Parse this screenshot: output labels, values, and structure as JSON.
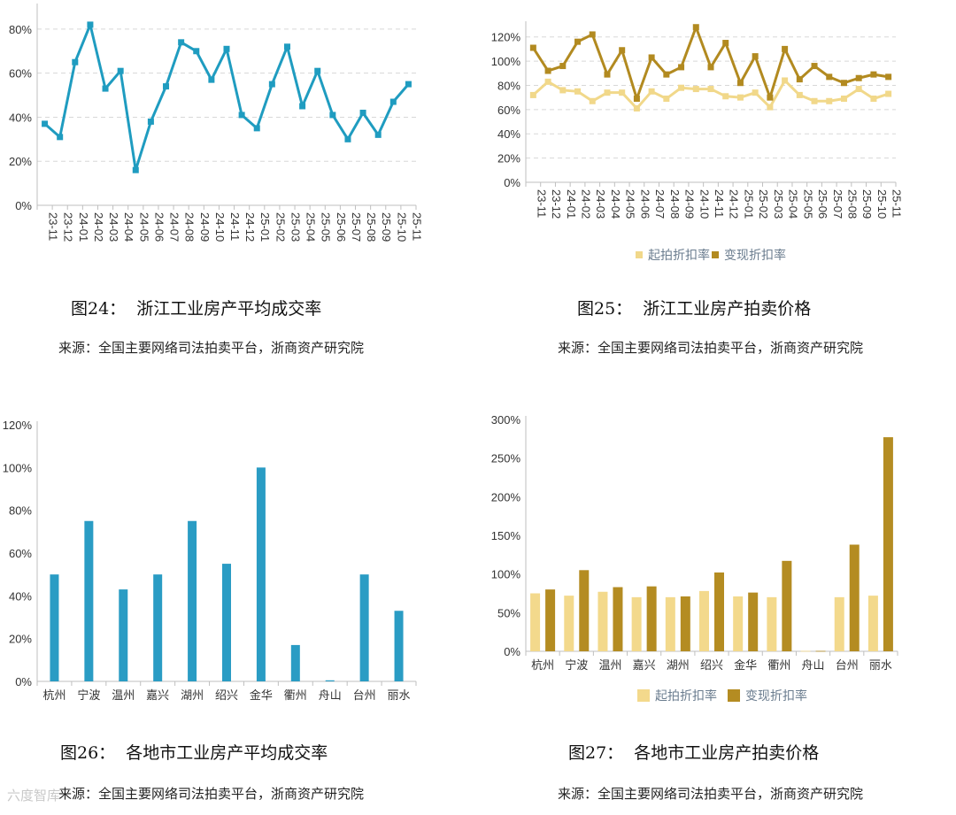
{
  "figures": [
    {
      "title": "图24：  浙江工业房产平均成交率",
      "source": "来源：全国主要网络司法拍卖平台，浙商资产研究院"
    },
    {
      "title": "图25：  浙江工业房产拍卖价格",
      "source": "来源：全国主要网络司法拍卖平台，浙商资产研究院"
    },
    {
      "title": "图26：  各地市工业房产平均成交率",
      "source": "来源：全国主要网络司法拍卖平台，浙商资产研究院"
    },
    {
      "title": "图27：  各地市工业房产拍卖价格",
      "source": "来源：全国主要网络司法拍卖平台，浙商资产研究院"
    }
  ],
  "watermark": "六度智库",
  "chart_data": [
    {
      "type": "line",
      "x": [
        "23-11",
        "23-12",
        "24-01",
        "24-02",
        "24-03",
        "24-04",
        "24-05",
        "24-06",
        "24-07",
        "24-08",
        "24-09",
        "24-10",
        "24-11",
        "24-12",
        "25-01",
        "25-02",
        "25-03",
        "25-04",
        "25-05",
        "25-06",
        "25-07",
        "25-08",
        "25-09",
        "25-10",
        "25-11"
      ],
      "series": [
        {
          "values": [
            37,
            31,
            65,
            82,
            53,
            61,
            16,
            38,
            54,
            74,
            70,
            57,
            71,
            41,
            35,
            55,
            72,
            45,
            61,
            41,
            30,
            42,
            32,
            47,
            55
          ],
          "color": "#1f9cc0"
        }
      ],
      "yticks": [
        "0%",
        "20%",
        "40%",
        "60%",
        "80%"
      ],
      "ylim": [
        0,
        90
      ],
      "grid": true
    },
    {
      "type": "line",
      "x": [
        "23-11",
        "23-12",
        "24-01",
        "24-02",
        "24-03",
        "24-04",
        "24-05",
        "24-06",
        "24-07",
        "24-08",
        "24-09",
        "24-10",
        "24-11",
        "24-12",
        "25-01",
        "25-02",
        "25-03",
        "25-04",
        "25-05",
        "25-06",
        "25-07",
        "25-08",
        "25-09",
        "25-10",
        "25-11"
      ],
      "series": [
        {
          "name": "起拍折扣率",
          "color": "#f1d88a",
          "values": [
            72,
            83,
            76,
            75,
            67,
            74,
            74,
            61,
            75,
            69,
            78,
            77,
            77,
            71,
            70,
            74,
            62,
            84,
            72,
            67,
            67,
            69,
            77,
            69,
            73
          ]
        },
        {
          "name": "变现折扣率",
          "color": "#b28a20",
          "values": [
            111,
            92,
            96,
            116,
            122,
            89,
            109,
            69,
            103,
            89,
            95,
            128,
            95,
            115,
            82,
            104,
            70,
            110,
            85,
            96,
            87,
            82,
            86,
            89,
            87
          ]
        }
      ],
      "yticks": [
        "0%",
        "20%",
        "40%",
        "60%",
        "80%",
        "100%",
        "120%"
      ],
      "ylim": [
        0,
        130
      ],
      "legend": "bottom",
      "grid": true
    },
    {
      "type": "bar",
      "categories": [
        "杭州",
        "宁波",
        "温州",
        "嘉兴",
        "湖州",
        "绍兴",
        "金华",
        "衢州",
        "舟山",
        "台州",
        "丽水"
      ],
      "series": [
        {
          "values": [
            50,
            75,
            43,
            50,
            75,
            55,
            100,
            17,
            0.5,
            50,
            33
          ],
          "color": "#2a9cc4"
        }
      ],
      "yticks": [
        "0%",
        "20%",
        "40%",
        "60%",
        "80%",
        "100%",
        "120%"
      ],
      "ylim": [
        0,
        120
      ],
      "grid": false
    },
    {
      "type": "bar",
      "categories": [
        "杭州",
        "宁波",
        "温州",
        "嘉兴",
        "湖州",
        "绍兴",
        "金华",
        "衢州",
        "舟山",
        "台州",
        "丽水"
      ],
      "series": [
        {
          "name": "起拍折扣率",
          "color": "#f3d98c",
          "values": [
            75,
            72,
            77,
            70,
            70,
            78,
            71,
            70,
            0.5,
            70,
            72
          ]
        },
        {
          "name": "变现折扣率",
          "color": "#b48c22",
          "values": [
            80,
            105,
            83,
            84,
            71,
            102,
            76,
            117,
            0.5,
            138,
            277
          ]
        }
      ],
      "yticks": [
        "0%",
        "50%",
        "100%",
        "150%",
        "200%",
        "250%",
        "300%"
      ],
      "ylim": [
        0,
        300
      ],
      "legend": "bottom",
      "grid": false
    }
  ]
}
